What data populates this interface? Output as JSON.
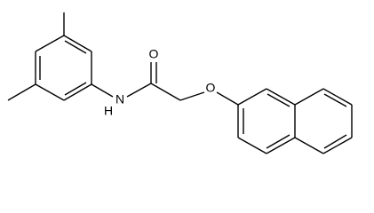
{
  "atoms": [
    {
      "label": "O"
    },
    {
      "label": "N"
    },
    {
      "label": "H"
    },
    {
      "label": "O"
    }
  ]
}
